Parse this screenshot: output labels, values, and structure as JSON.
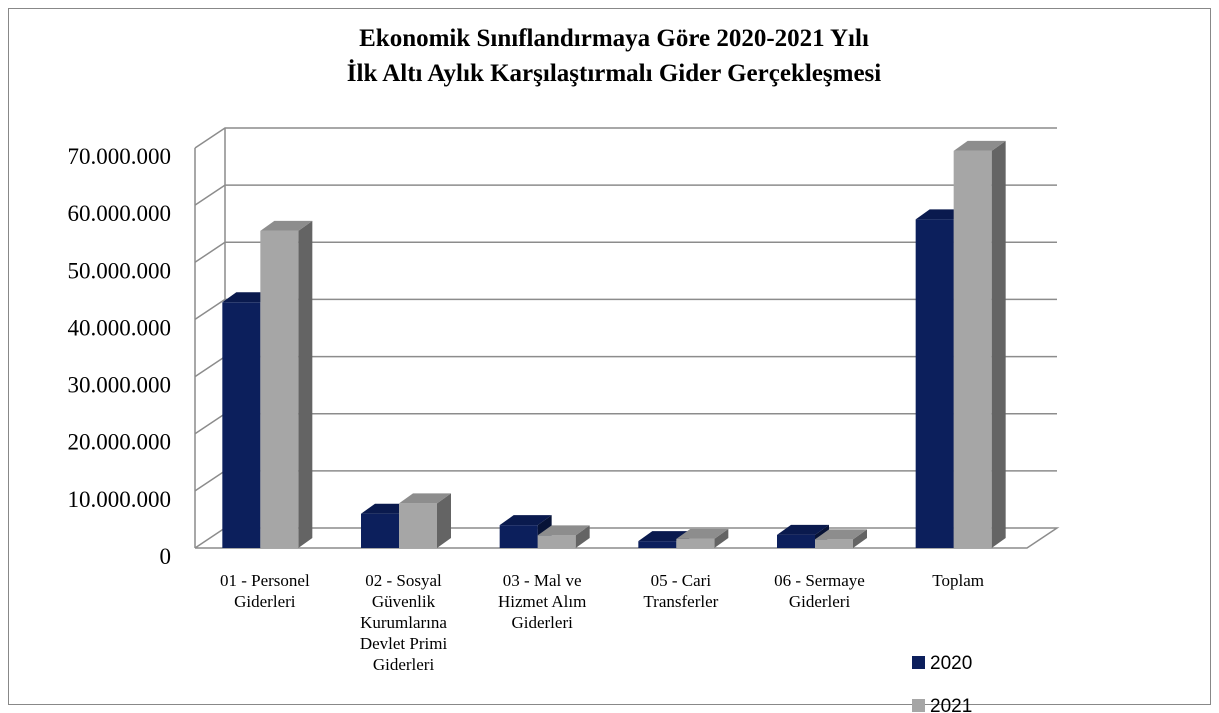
{
  "chart_data": {
    "type": "bar3d",
    "title": "Ekonomik Sınıflandırmaya Göre 2020-2021 Yılı",
    "subtitle": "İlk Altı Aylık Karşılaştırmalı Gider Gerçekleşmesi",
    "categories": [
      "01 - Personel Giderleri",
      "02 - Sosyal Güvenlik Kurumlarına Devlet Primi Giderleri",
      "03 - Mal ve Hizmet Alım Giderleri",
      "05 - Cari Transferler",
      "06 - Sermaye Giderleri",
      "Toplam"
    ],
    "series": [
      {
        "name": "2020",
        "color": "#0c1f5c",
        "values": [
          43000000,
          6000000,
          4000000,
          1200000,
          2300000,
          57500000
        ]
      },
      {
        "name": "2021",
        "color": "#a6a6a6",
        "values": [
          55500000,
          7800000,
          2200000,
          1600000,
          1500000,
          69500000
        ]
      }
    ],
    "ylim": [
      0,
      70000000
    ],
    "yticks": [
      0,
      {
        "value": 10000000,
        "label": "10.000.000"
      },
      {
        "value": 20000000,
        "label": "20.000.000"
      },
      {
        "value": 30000000,
        "label": "30.000.000"
      },
      {
        "value": 40000000,
        "label": "40.000.000"
      },
      {
        "value": 50000000,
        "label": "50.000.000"
      },
      {
        "value": 60000000,
        "label": "60.000.000"
      },
      {
        "value": 70000000,
        "label": "70.000.000"
      }
    ],
    "grid": true,
    "legend": "bottom-right"
  }
}
